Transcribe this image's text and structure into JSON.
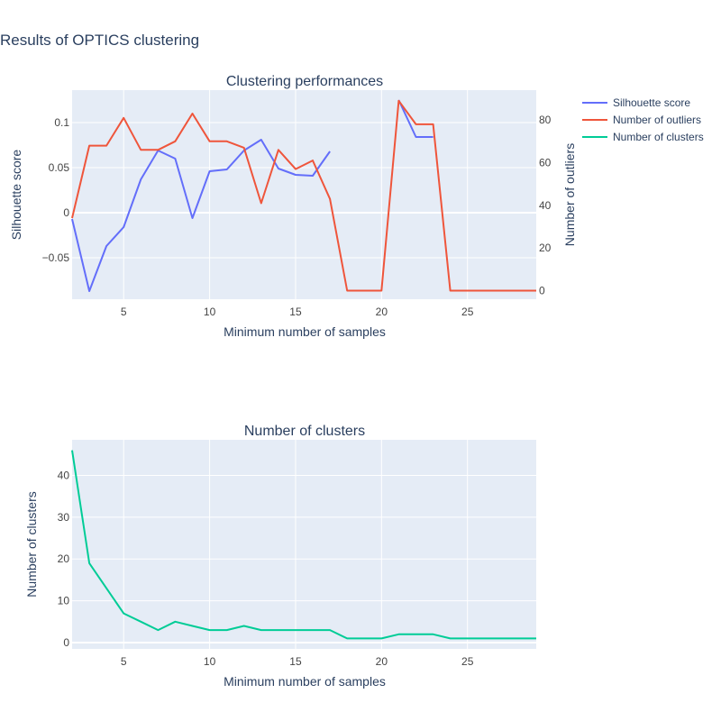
{
  "page_title": "Results of OPTICS clustering",
  "colors": {
    "silhouette": "#636efa",
    "outliers": "#ef553b",
    "clusters": "#00cc96",
    "plot_bg": "#e5ecf6",
    "grid": "#ffffff",
    "text": "#2a3f5f",
    "tick": "#444444"
  },
  "chart_data": [
    {
      "type": "line",
      "title": "Clustering performances",
      "xlabel": "Minimum number of samples",
      "ylabel": "Silhouette score",
      "y2label": "Number of outliers",
      "xlim": [
        2,
        29
      ],
      "ylim": [
        -0.096,
        0.136
      ],
      "y2lim": [
        -4,
        94
      ],
      "x_ticks": [
        5,
        10,
        15,
        20,
        25
      ],
      "y_ticks": [
        -0.05,
        0,
        0.05,
        0.1
      ],
      "y_tick_labels": [
        "−0.05",
        "0",
        "0.05",
        "0.1"
      ],
      "y2_ticks": [
        0,
        20,
        40,
        60,
        80
      ],
      "legend_position": "top-right",
      "grid": true,
      "series": [
        {
          "name": "Silhouette score",
          "axis": "y",
          "x": [
            2,
            3,
            4,
            5,
            6,
            7,
            8,
            9,
            10,
            11,
            12,
            13,
            14,
            15,
            16,
            17,
            18,
            19,
            20,
            21,
            22,
            23
          ],
          "values": [
            -0.007,
            -0.087,
            -0.037,
            -0.016,
            0.037,
            0.069,
            0.06,
            -0.006,
            0.046,
            0.048,
            0.069,
            0.081,
            0.049,
            0.042,
            0.041,
            0.068,
            null,
            null,
            null,
            0.125,
            0.084,
            0.084
          ]
        },
        {
          "name": "Number of outliers",
          "axis": "y2",
          "x": [
            2,
            3,
            4,
            5,
            6,
            7,
            8,
            9,
            10,
            11,
            12,
            13,
            14,
            15,
            16,
            17,
            18,
            19,
            20,
            21,
            22,
            23,
            24,
            25,
            26,
            27,
            28,
            29
          ],
          "values": [
            34,
            68,
            68,
            81,
            66,
            66,
            70,
            83,
            70,
            70,
            67,
            41,
            66,
            57,
            61,
            43,
            0,
            0,
            0,
            89,
            78,
            78,
            0,
            0,
            0,
            0,
            0,
            0
          ]
        }
      ]
    },
    {
      "type": "line",
      "title": "Number of clusters",
      "xlabel": "Minimum number of samples",
      "ylabel": "Number of clusters",
      "xlim": [
        2,
        29
      ],
      "ylim": [
        -1.5,
        48.5
      ],
      "x_ticks": [
        5,
        10,
        15,
        20,
        25
      ],
      "y_ticks": [
        0,
        10,
        20,
        30,
        40
      ],
      "grid": true,
      "series": [
        {
          "name": "Number of clusters",
          "x": [
            2,
            3,
            4,
            5,
            6,
            7,
            8,
            9,
            10,
            11,
            12,
            13,
            14,
            15,
            16,
            17,
            18,
            19,
            20,
            21,
            22,
            23,
            24,
            25,
            26,
            27,
            28,
            29
          ],
          "values": [
            46,
            19,
            13,
            7,
            5,
            3,
            5,
            4,
            3,
            3,
            4,
            3,
            3,
            3,
            3,
            3,
            1,
            1,
            1,
            2,
            2,
            2,
            1,
            1,
            1,
            1,
            1,
            1
          ]
        }
      ]
    }
  ],
  "legend": [
    {
      "name": "Silhouette score",
      "color_key": "silhouette"
    },
    {
      "name": "Number of outliers",
      "color_key": "outliers"
    },
    {
      "name": "Number of clusters",
      "color_key": "clusters"
    }
  ]
}
